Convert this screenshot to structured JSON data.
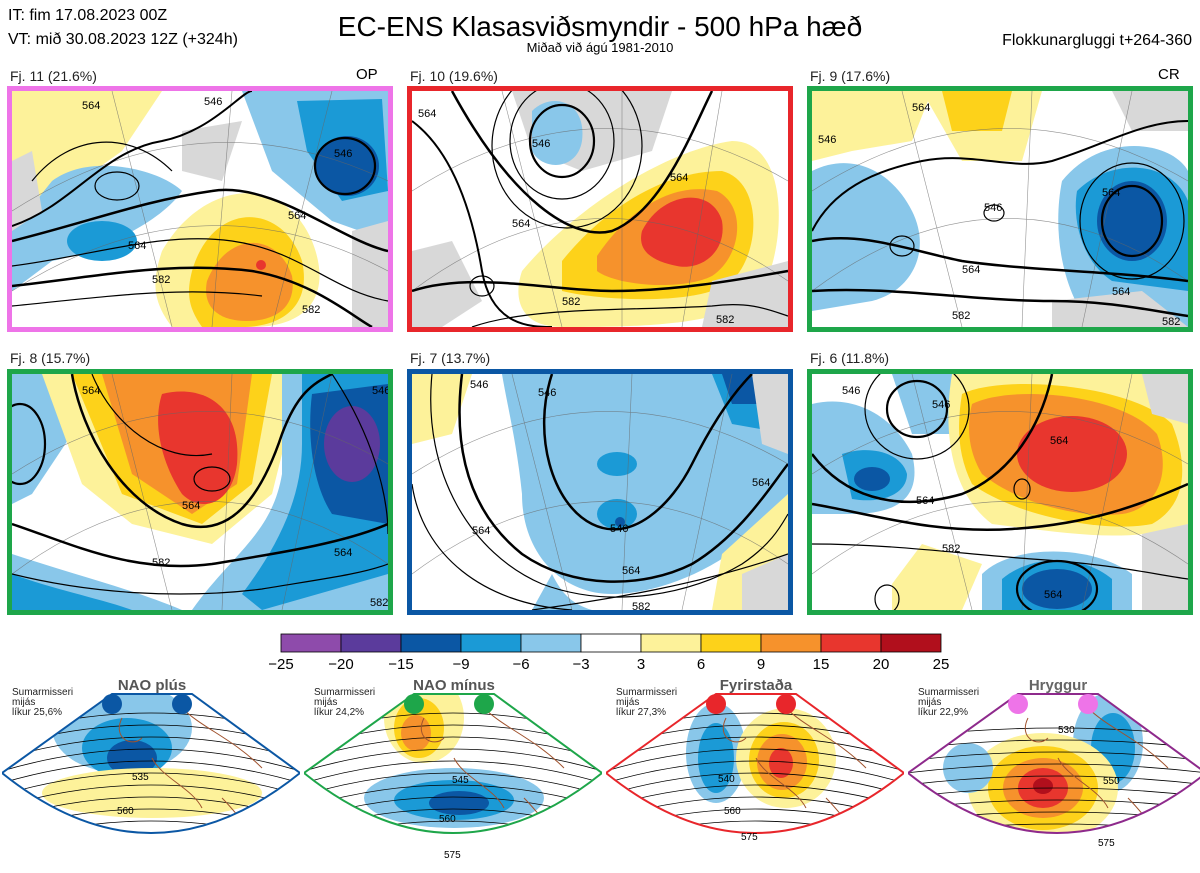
{
  "header": {
    "init_time": "IT: fim 17.08.2023 00Z",
    "valid_time": "VT: mið 30.08.2023 12Z  (+324h)",
    "title": "EC-ENS Klasasviðsmyndir - 500 hPa hæð",
    "subtitle": "Miðað við ágú 1981-2010",
    "window": "Flokkunargluggi t+264-360"
  },
  "panels": [
    {
      "label": "Fj. 11 (21.6%)",
      "corner": "OP",
      "frame_color": "#ee74e8",
      "contour_labels": [
        "546",
        "546",
        "564",
        "564",
        "564",
        "582",
        "582"
      ]
    },
    {
      "label": "Fj. 10 (19.6%)",
      "corner": "",
      "frame_color": "#e8262b",
      "contour_labels": [
        "564",
        "546",
        "564",
        "564",
        "582",
        "582"
      ]
    },
    {
      "label": "Fj. 9 (17.6%)",
      "corner": "CR",
      "frame_color": "#1ea64a",
      "contour_labels": [
        "546",
        "564",
        "546",
        "564",
        "564",
        "564",
        "582",
        "582"
      ]
    },
    {
      "label": "Fj. 8 (15.7%)",
      "corner": "",
      "frame_color": "#1ea64a",
      "contour_labels": [
        "564",
        "546",
        "564",
        "582",
        "564",
        "582"
      ]
    },
    {
      "label": "Fj. 7 (13.7%)",
      "corner": "",
      "frame_color": "#0b57a4",
      "contour_labels": [
        "546",
        "546",
        "564",
        "564",
        "546",
        "564",
        "582"
      ]
    },
    {
      "label": "Fj. 6 (11.8%)",
      "corner": "",
      "frame_color": "#1ea64a",
      "contour_labels": [
        "546",
        "546",
        "564",
        "564",
        "582",
        "564"
      ]
    }
  ],
  "colorbar": {
    "colors": [
      "#8e4bab",
      "#5b3b9c",
      "#0b57a4",
      "#1b9ad6",
      "#89c7ea",
      "#ffffff",
      "#fdf29a",
      "#fdd21a",
      "#f6922c",
      "#e8362e",
      "#b10f1c"
    ],
    "ticks": [
      "−25",
      "−20",
      "−15",
      "−9",
      "−6",
      "−3",
      "3",
      "6",
      "9",
      "15",
      "20",
      "25"
    ]
  },
  "regimes": [
    {
      "name": "NAO plús",
      "note": [
        "Sumarmisseri",
        "mijás",
        "líkur 25,6%"
      ],
      "color": "#0b57a4",
      "contours": [
        "535",
        "560"
      ]
    },
    {
      "name": "NAO mínus",
      "note": [
        "Sumarmisseri",
        "mijás",
        "líkur 24,2%"
      ],
      "color": "#1ea64a",
      "contours": [
        "545",
        "560",
        "575"
      ]
    },
    {
      "name": "Fyrirstaða",
      "note": [
        "Sumarmisseri",
        "mijás",
        "líkur 27,3%"
      ],
      "color": "#e8262b",
      "contours": [
        "540",
        "560",
        "575"
      ]
    },
    {
      "name": "Hryggur",
      "note": [
        "Sumarmisseri",
        "mijás",
        "líkur 22,9%"
      ],
      "color": "#8e2a8c",
      "dot_color": "#ee74e8",
      "contours": [
        "530",
        "550",
        "575"
      ]
    }
  ]
}
